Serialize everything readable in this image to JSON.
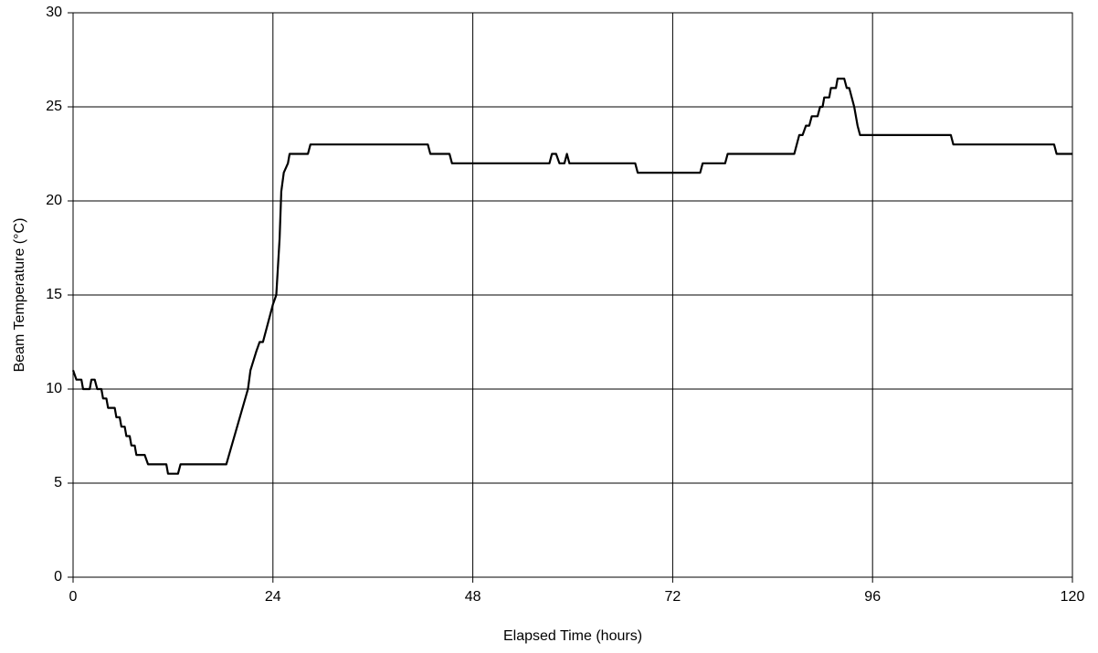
{
  "chart_data": {
    "type": "line",
    "x_label": "Elapsed Time (hours)",
    "y_label": "Beam Temperature (°C)",
    "xlim": [
      0,
      120
    ],
    "xticks": [
      0,
      24,
      48,
      72,
      96,
      120
    ],
    "ylim": [
      0,
      30
    ],
    "yticks": [
      0,
      5,
      10,
      15,
      20,
      25,
      30
    ],
    "grid": true,
    "series": [
      {
        "color": "#000000",
        "x": [
          0,
          0.4,
          1,
          1.2,
          2,
          2.2,
          2.6,
          2.9,
          3.4,
          3.6,
          4.0,
          4.2,
          5.0,
          5.2,
          5.6,
          5.8,
          6.2,
          6.4,
          6.8,
          7.0,
          7.4,
          7.6,
          8.6,
          9.0,
          11.2,
          11.4,
          12.6,
          12.9,
          18.4,
          21,
          21.3,
          22,
          22.4,
          22.8,
          24,
          24.4,
          24.8,
          25.0,
          25.3,
          25.8,
          26,
          28.2,
          28.5,
          42.6,
          42.9,
          45.2,
          45.5,
          57.2,
          57.5,
          58.0,
          58.4,
          59,
          59.3,
          59.6,
          67.5,
          67.8,
          75.3,
          75.6,
          78.3,
          78.6,
          86.6,
          87.2,
          87.6,
          88,
          88.4,
          88.7,
          89.4,
          89.7,
          90,
          90.2,
          90.8,
          91,
          91.6,
          91.8,
          92.6,
          92.9,
          93.2,
          93.8,
          94.2,
          94.5,
          105.4,
          105.7,
          117.8,
          118.1,
          120
        ],
        "values": [
          11,
          10.5,
          10.5,
          10,
          10,
          10.5,
          10.5,
          10,
          10,
          9.5,
          9.5,
          9,
          9,
          8.5,
          8.5,
          8,
          8,
          7.5,
          7.5,
          7,
          7,
          6.5,
          6.5,
          6,
          6,
          5.5,
          5.5,
          6,
          6,
          10,
          11,
          12,
          12.5,
          12.5,
          14.5,
          15,
          18,
          20.5,
          21.5,
          22,
          22.5,
          22.5,
          23,
          23,
          22.5,
          22.5,
          22,
          22,
          22.5,
          22.5,
          22,
          22,
          22.5,
          22,
          22,
          21.5,
          21.5,
          22,
          22,
          22.5,
          22.5,
          23.5,
          23.5,
          24,
          24,
          24.5,
          24.5,
          25,
          25,
          25.5,
          25.5,
          26,
          26,
          26.5,
          26.5,
          26,
          26,
          25,
          24,
          23.5,
          23.5,
          23,
          23,
          22.5,
          22.5
        ]
      }
    ]
  }
}
